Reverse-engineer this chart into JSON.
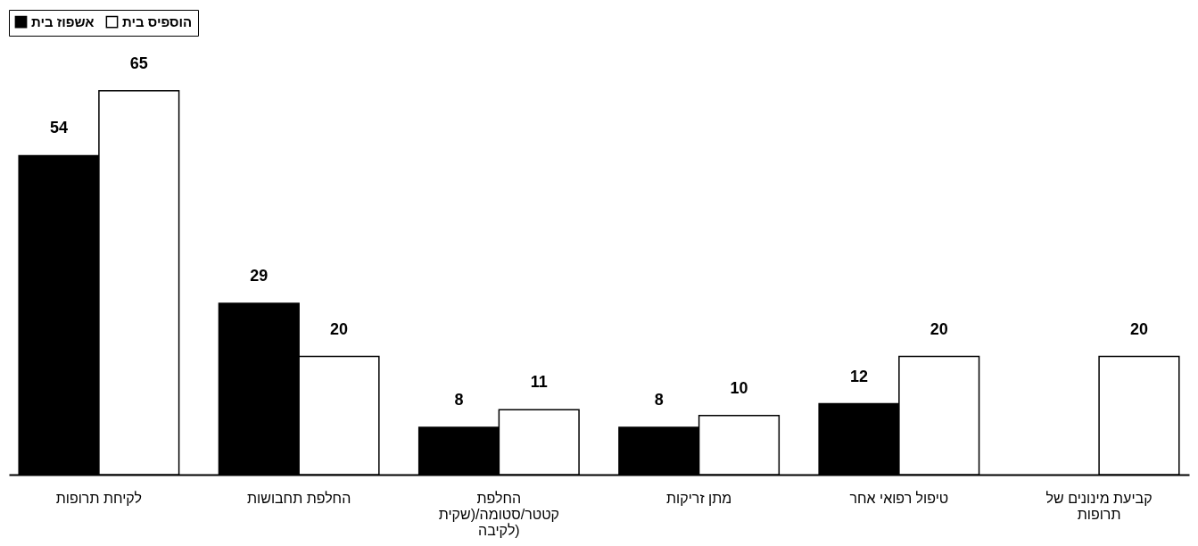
{
  "chart_data": {
    "type": "bar",
    "categories": [
      "לקיחת תרופות",
      "החלפת תחבושות",
      "החלפת קטטר/סטומה/(שקית לקיבה)",
      "מתן זריקות",
      "טיפול רפואי אחר",
      "קביעת מינונים של תרופות"
    ],
    "series": [
      {
        "name": "אשפוז בית",
        "color": "#000000",
        "values": [
          54,
          29,
          8,
          8,
          12,
          null
        ]
      },
      {
        "name": "הוספיס בית",
        "color": "#ffffff",
        "values": [
          65,
          20,
          11,
          10,
          20,
          20
        ]
      }
    ],
    "data_labels": true,
    "legend": "top",
    "grid": false
  }
}
